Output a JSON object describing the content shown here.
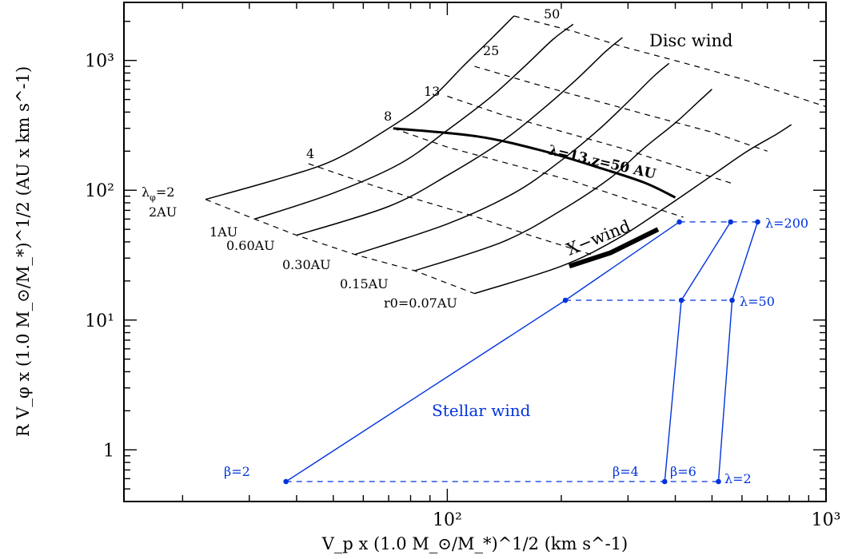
{
  "chart_data": {
    "type": "line",
    "title": "",
    "xlabel": "V_p x (1.0 M_⊙/M_*)^1/2 (km s^-1)",
    "ylabel": "R V_φ x (1.0 M_⊙/M_*)^1/2 (AU x km s^-1)",
    "x_scale": "log",
    "y_scale": "log",
    "xlim": [
      14,
      1000
    ],
    "ylim": [
      0.4,
      2800
    ],
    "x_ticks": [
      "10²",
      "10³"
    ],
    "y_ticks": [
      "1",
      "10¹",
      "10²",
      "10³"
    ],
    "grid": false,
    "disc_wind": {
      "label": "Disc wind",
      "r0_labels": [
        "2AU",
        "1AU",
        "0.60AU",
        "0.30AU",
        "0.15AU",
        "r0=0.07AU"
      ],
      "lambda_labels": [
        "λ_φ=2",
        "4",
        "8",
        "13",
        "25",
        "50"
      ],
      "r0_curves": [
        {
          "name": "2AU",
          "points": [
            [
              23.0,
              85
            ],
            [
              35,
              120
            ],
            [
              50,
              170
            ],
            [
              70,
              300
            ],
            [
              90,
              500
            ],
            [
              110,
              900
            ],
            [
              130,
              1450
            ],
            [
              150,
              2200
            ]
          ]
        },
        {
          "name": "1AU",
          "points": [
            [
              31,
              60
            ],
            [
              50,
              95
            ],
            [
              75,
              160
            ],
            [
              100,
              290
            ],
            [
              130,
              520
            ],
            [
              160,
              900
            ],
            [
              190,
              1450
            ],
            [
              215,
              1900
            ]
          ]
        },
        {
          "name": "0.60AU",
          "points": [
            [
              40,
              45
            ],
            [
              70,
              75
            ],
            [
              100,
              130
            ],
            [
              140,
              240
            ],
            [
              180,
              430
            ],
            [
              220,
              720
            ],
            [
              260,
              1150
            ],
            [
              290,
              1500
            ]
          ]
        },
        {
          "name": "0.30AU",
          "points": [
            [
              57,
              32
            ],
            [
              100,
              55
            ],
            [
              150,
              95
            ],
            [
              200,
              170
            ],
            [
              250,
              290
            ],
            [
              300,
              480
            ],
            [
              350,
              750
            ],
            [
              385,
              950
            ]
          ]
        },
        {
          "name": "0.15AU",
          "points": [
            [
              82,
              24
            ],
            [
              140,
              40
            ],
            [
              200,
              70
            ],
            [
              270,
              125
            ],
            [
              330,
              210
            ],
            [
              400,
              330
            ],
            [
              460,
              480
            ],
            [
              500,
              600
            ]
          ]
        },
        {
          "name": "r0=0.07AU",
          "points": [
            [
              118,
              16
            ],
            [
              200,
              26
            ],
            [
              280,
              42
            ],
            [
              380,
              75
            ],
            [
              500,
              130
            ],
            [
              620,
              200
            ],
            [
              740,
              270
            ],
            [
              810,
              320
            ]
          ]
        }
      ],
      "lambda_lines": [
        {
          "name": "2",
          "points": [
            [
              23.0,
              85
            ],
            [
              31,
              60
            ],
            [
              40,
              45
            ],
            [
              57,
              32
            ],
            [
              82,
              24
            ],
            [
              118,
              16
            ]
          ]
        },
        {
          "name": "4",
          "points": [
            [
              43,
              160
            ],
            [
              60,
              115
            ],
            [
              80,
              88
            ],
            [
              120,
              62
            ],
            [
              165,
              45
            ],
            [
              240,
              32
            ]
          ]
        },
        {
          "name": "8",
          "points": [
            [
              72,
              300
            ],
            [
              100,
              215
            ],
            [
              140,
              165
            ],
            [
              210,
              120
            ],
            [
              290,
              88
            ],
            [
              420,
              62
            ]
          ]
        },
        {
          "name": "13",
          "points": [
            [
              100,
              530
            ],
            [
              140,
              380
            ],
            [
              195,
              290
            ],
            [
              290,
              210
            ],
            [
              400,
              155
            ],
            [
              570,
              112
            ]
          ]
        },
        {
          "name": "25",
          "points": [
            [
              118,
              900
            ],
            [
              170,
              660
            ],
            [
              240,
              500
            ],
            [
              350,
              370
            ],
            [
              500,
              280
            ],
            [
              700,
              200
            ]
          ]
        },
        {
          "name": "50",
          "points": [
            [
              150,
              2200
            ],
            [
              215,
              1680
            ],
            [
              290,
              1280
            ],
            [
              420,
              960
            ],
            [
              600,
              720
            ],
            [
              1000,
              440
            ]
          ]
        }
      ],
      "lambda13_z50": {
        "label": "λ=13,z=50 AU",
        "points": [
          [
            72,
            300
          ],
          [
            120,
            260
          ],
          [
            180,
            200
          ],
          [
            250,
            150
          ],
          [
            330,
            115
          ],
          [
            400,
            88
          ]
        ]
      }
    },
    "x_wind": {
      "label": "X−wind",
      "points": [
        [
          210,
          26
        ],
        [
          270,
          33
        ],
        [
          360,
          50
        ]
      ]
    },
    "stellar_wind": {
      "label": "Stellar wind",
      "beta_labels": [
        "β=2",
        "β=4",
        "β=6"
      ],
      "lambda_labels": [
        "λ=200",
        "λ=50",
        "λ=2"
      ],
      "beta_curves": [
        {
          "name": "β=2",
          "points": [
            [
              37.5,
              0.57
            ],
            [
              205,
              14.2
            ],
            [
              410,
              57
            ]
          ]
        },
        {
          "name": "β=4",
          "points": [
            [
              375,
              0.57
            ],
            [
              415,
              14.2
            ],
            [
              560,
              57
            ]
          ]
        },
        {
          "name": "β=6",
          "points": [
            [
              520,
              0.57
            ],
            [
              565,
              14.2
            ],
            [
              660,
              57
            ]
          ]
        }
      ],
      "lambda_lines": [
        {
          "name": "λ=200",
          "points": [
            [
              410,
              57
            ],
            [
              560,
              57
            ],
            [
              660,
              57
            ]
          ]
        },
        {
          "name": "λ=50",
          "points": [
            [
              205,
              14.2
            ],
            [
              415,
              14.2
            ],
            [
              565,
              14.2
            ]
          ]
        },
        {
          "name": "λ=2",
          "points": [
            [
              37.5,
              0.57
            ],
            [
              375,
              0.57
            ],
            [
              520,
              0.57
            ]
          ]
        }
      ]
    },
    "colors": {
      "disc": "#000000",
      "stellar": "#0033dd"
    }
  }
}
